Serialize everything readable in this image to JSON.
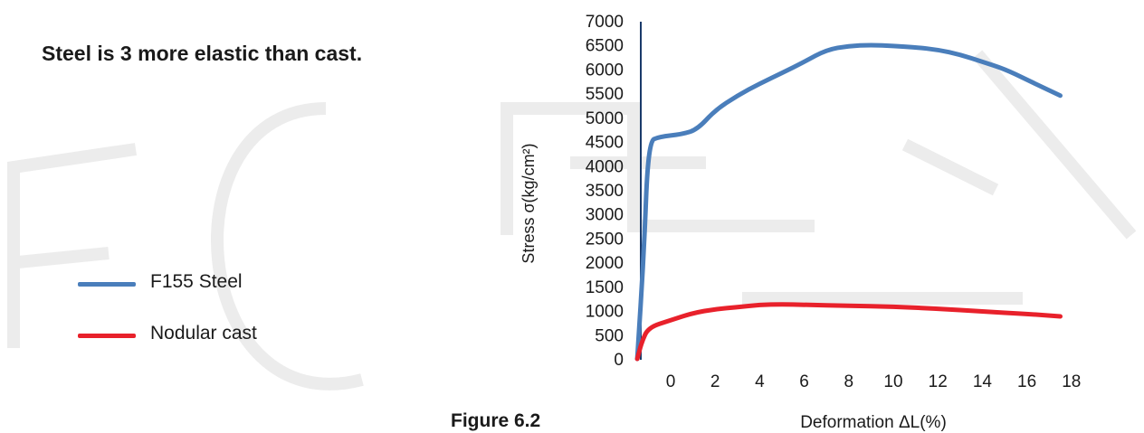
{
  "headline": "Steel is 3 more elastic than cast.",
  "figure_caption": "Figure 6.2",
  "colors": {
    "steel": "#4a7ebb",
    "cast": "#e8212b",
    "axis": "#1a3a6a",
    "text": "#1a1a1a",
    "watermark": "#ececec"
  },
  "chart_data": {
    "type": "line",
    "title": "",
    "xlabel": "Deformation ΔL(%)",
    "ylabel": "Stress σ(kg/cm²)",
    "xlim": [
      -1.5,
      17.5
    ],
    "ylim": [
      0,
      7000
    ],
    "x_ticks": [
      0,
      2,
      4,
      6,
      8,
      10,
      12,
      14,
      16,
      18
    ],
    "y_ticks": [
      0,
      500,
      1000,
      1500,
      2000,
      2500,
      3000,
      3500,
      4000,
      4500,
      5000,
      5500,
      6000,
      6500,
      7000
    ],
    "grid": false,
    "legend": "left",
    "series": [
      {
        "name": "F155 Steel",
        "points": [
          [
            -1.5,
            0
          ],
          [
            -1.2,
            2200
          ],
          [
            -1.0,
            4500
          ],
          [
            -0.5,
            4600
          ],
          [
            0.5,
            4650
          ],
          [
            1.2,
            4750
          ],
          [
            2.0,
            5150
          ],
          [
            3.0,
            5450
          ],
          [
            4.0,
            5700
          ],
          [
            5.0,
            5920
          ],
          [
            6.0,
            6150
          ],
          [
            7.0,
            6400
          ],
          [
            8.0,
            6480
          ],
          [
            9.0,
            6500
          ],
          [
            10.0,
            6480
          ],
          [
            11.0,
            6450
          ],
          [
            12.0,
            6400
          ],
          [
            13.0,
            6300
          ],
          [
            14.0,
            6150
          ],
          [
            15.0,
            6000
          ],
          [
            16.0,
            5780
          ],
          [
            17.5,
            5450
          ]
        ]
      },
      {
        "name": "Nodular cast",
        "points": [
          [
            -1.5,
            0
          ],
          [
            -1.3,
            350
          ],
          [
            -1.0,
            650
          ],
          [
            0.0,
            800
          ],
          [
            1.0,
            950
          ],
          [
            2.0,
            1030
          ],
          [
            3.0,
            1070
          ],
          [
            4.0,
            1120
          ],
          [
            5.0,
            1130
          ],
          [
            6.0,
            1120
          ],
          [
            8.0,
            1100
          ],
          [
            10.0,
            1080
          ],
          [
            12.0,
            1040
          ],
          [
            14.0,
            980
          ],
          [
            16.0,
            930
          ],
          [
            17.5,
            880
          ]
        ]
      }
    ]
  }
}
